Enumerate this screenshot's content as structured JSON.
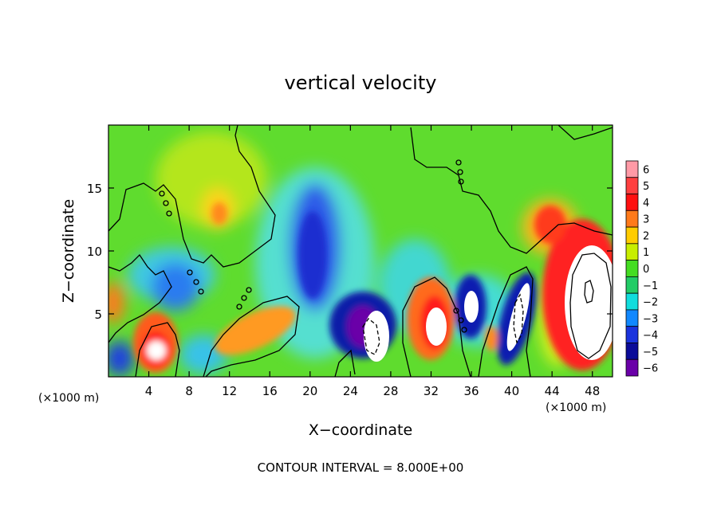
{
  "chart_data": {
    "type": "heatmap",
    "title": "vertical velocity",
    "xlabel": "X−coordinate",
    "ylabel": "Z−coordinate",
    "x_unit_label": "(×1000 m)",
    "z_unit_label": "(×1000 m)",
    "footnote": "CONTOUR INTERVAL = 8.000E+00",
    "xlim": [
      0,
      50
    ],
    "ylim": [
      0,
      20
    ],
    "x_ticks": [
      4,
      8,
      12,
      16,
      20,
      24,
      28,
      32,
      36,
      40,
      44,
      48
    ],
    "y_ticks": [
      5,
      10,
      15
    ],
    "colorbar": {
      "levels": [
        6,
        5,
        4,
        3,
        2,
        1,
        0,
        -1,
        -2,
        -3,
        -4,
        -5,
        -6
      ],
      "colors": [
        "#ff9aa6",
        "#ff4040",
        "#ff1010",
        "#ff7a1a",
        "#ffcc00",
        "#c8ee00",
        "#44dd22",
        "#22cc66",
        "#11dddd",
        "#1188ff",
        "#1a33dd",
        "#0b0b99",
        "#6a00a8"
      ]
    },
    "features": [
      {
        "kind": "updraft",
        "x": 4.5,
        "z": 2.0,
        "value": 6
      },
      {
        "kind": "updraft",
        "x": 11.0,
        "z": 12.5,
        "value": 3
      },
      {
        "kind": "updraft",
        "x": 15.0,
        "z": 3.0,
        "value": 3
      },
      {
        "kind": "updraft",
        "x": 32.0,
        "z": 4.0,
        "value": 6
      },
      {
        "kind": "updraft",
        "x": 47.0,
        "z": 7.0,
        "value": 6
      },
      {
        "kind": "updraft",
        "x": 45.0,
        "z": 12.0,
        "value": 4
      },
      {
        "kind": "downdraft",
        "x": 20.5,
        "z": 11.5,
        "value": -4
      },
      {
        "kind": "downdraft",
        "x": 26.0,
        "z": 3.5,
        "value": -6
      },
      {
        "kind": "downdraft",
        "x": 36.0,
        "z": 5.0,
        "value": -6
      },
      {
        "kind": "downdraft",
        "x": 40.5,
        "z": 5.0,
        "value": -6
      },
      {
        "kind": "downdraft",
        "x": 1.5,
        "z": 2.0,
        "value": -4
      }
    ]
  }
}
